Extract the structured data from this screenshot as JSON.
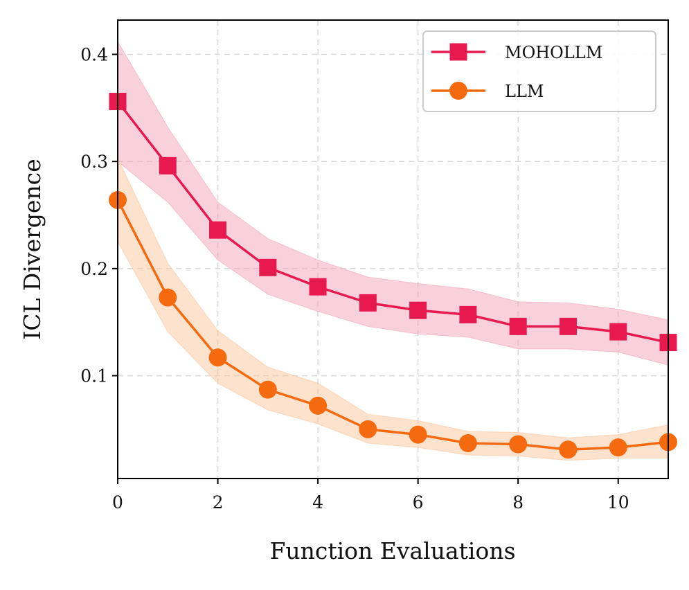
{
  "chart_data": {
    "type": "line",
    "title": "",
    "xlabel": "Function Evaluations",
    "ylabel": "ICL Divergence",
    "xlim": [
      0,
      11
    ],
    "ylim": [
      0.004,
      0.432
    ],
    "xticks": [
      0,
      2,
      4,
      6,
      8,
      10
    ],
    "xtick_labels": [
      "0",
      "2",
      "4",
      "6",
      "8",
      "10"
    ],
    "yticks": [
      0.1,
      0.2,
      0.3,
      0.4
    ],
    "ytick_labels": [
      "0.1",
      "0.2",
      "0.3",
      "0.4"
    ],
    "grid": true,
    "legend_position": "top-right",
    "x": [
      0,
      1,
      2,
      3,
      4,
      5,
      6,
      7,
      8,
      9,
      10,
      11
    ],
    "series": [
      {
        "name": "MOHOLLM",
        "color": "#e8194f",
        "band_color": "#f4a3bb",
        "marker": "square",
        "values": [
          0.356,
          0.296,
          0.236,
          0.201,
          0.183,
          0.168,
          0.161,
          0.157,
          0.146,
          0.146,
          0.141,
          0.131
        ],
        "lower": [
          0.3,
          0.262,
          0.208,
          0.176,
          0.16,
          0.146,
          0.139,
          0.136,
          0.125,
          0.125,
          0.122,
          0.11
        ],
        "upper": [
          0.412,
          0.332,
          0.262,
          0.228,
          0.208,
          0.192,
          0.186,
          0.181,
          0.169,
          0.168,
          0.162,
          0.152
        ]
      },
      {
        "name": "LLM",
        "color": "#f56a0e",
        "band_color": "#fbc59c",
        "marker": "circle",
        "values": [
          0.264,
          0.173,
          0.117,
          0.087,
          0.072,
          0.05,
          0.045,
          0.037,
          0.036,
          0.031,
          0.033,
          0.038
        ],
        "lower": [
          0.225,
          0.141,
          0.093,
          0.068,
          0.055,
          0.037,
          0.033,
          0.026,
          0.025,
          0.021,
          0.023,
          0.023
        ],
        "upper": [
          0.303,
          0.205,
          0.142,
          0.108,
          0.093,
          0.064,
          0.058,
          0.048,
          0.047,
          0.042,
          0.045,
          0.054
        ]
      }
    ]
  }
}
